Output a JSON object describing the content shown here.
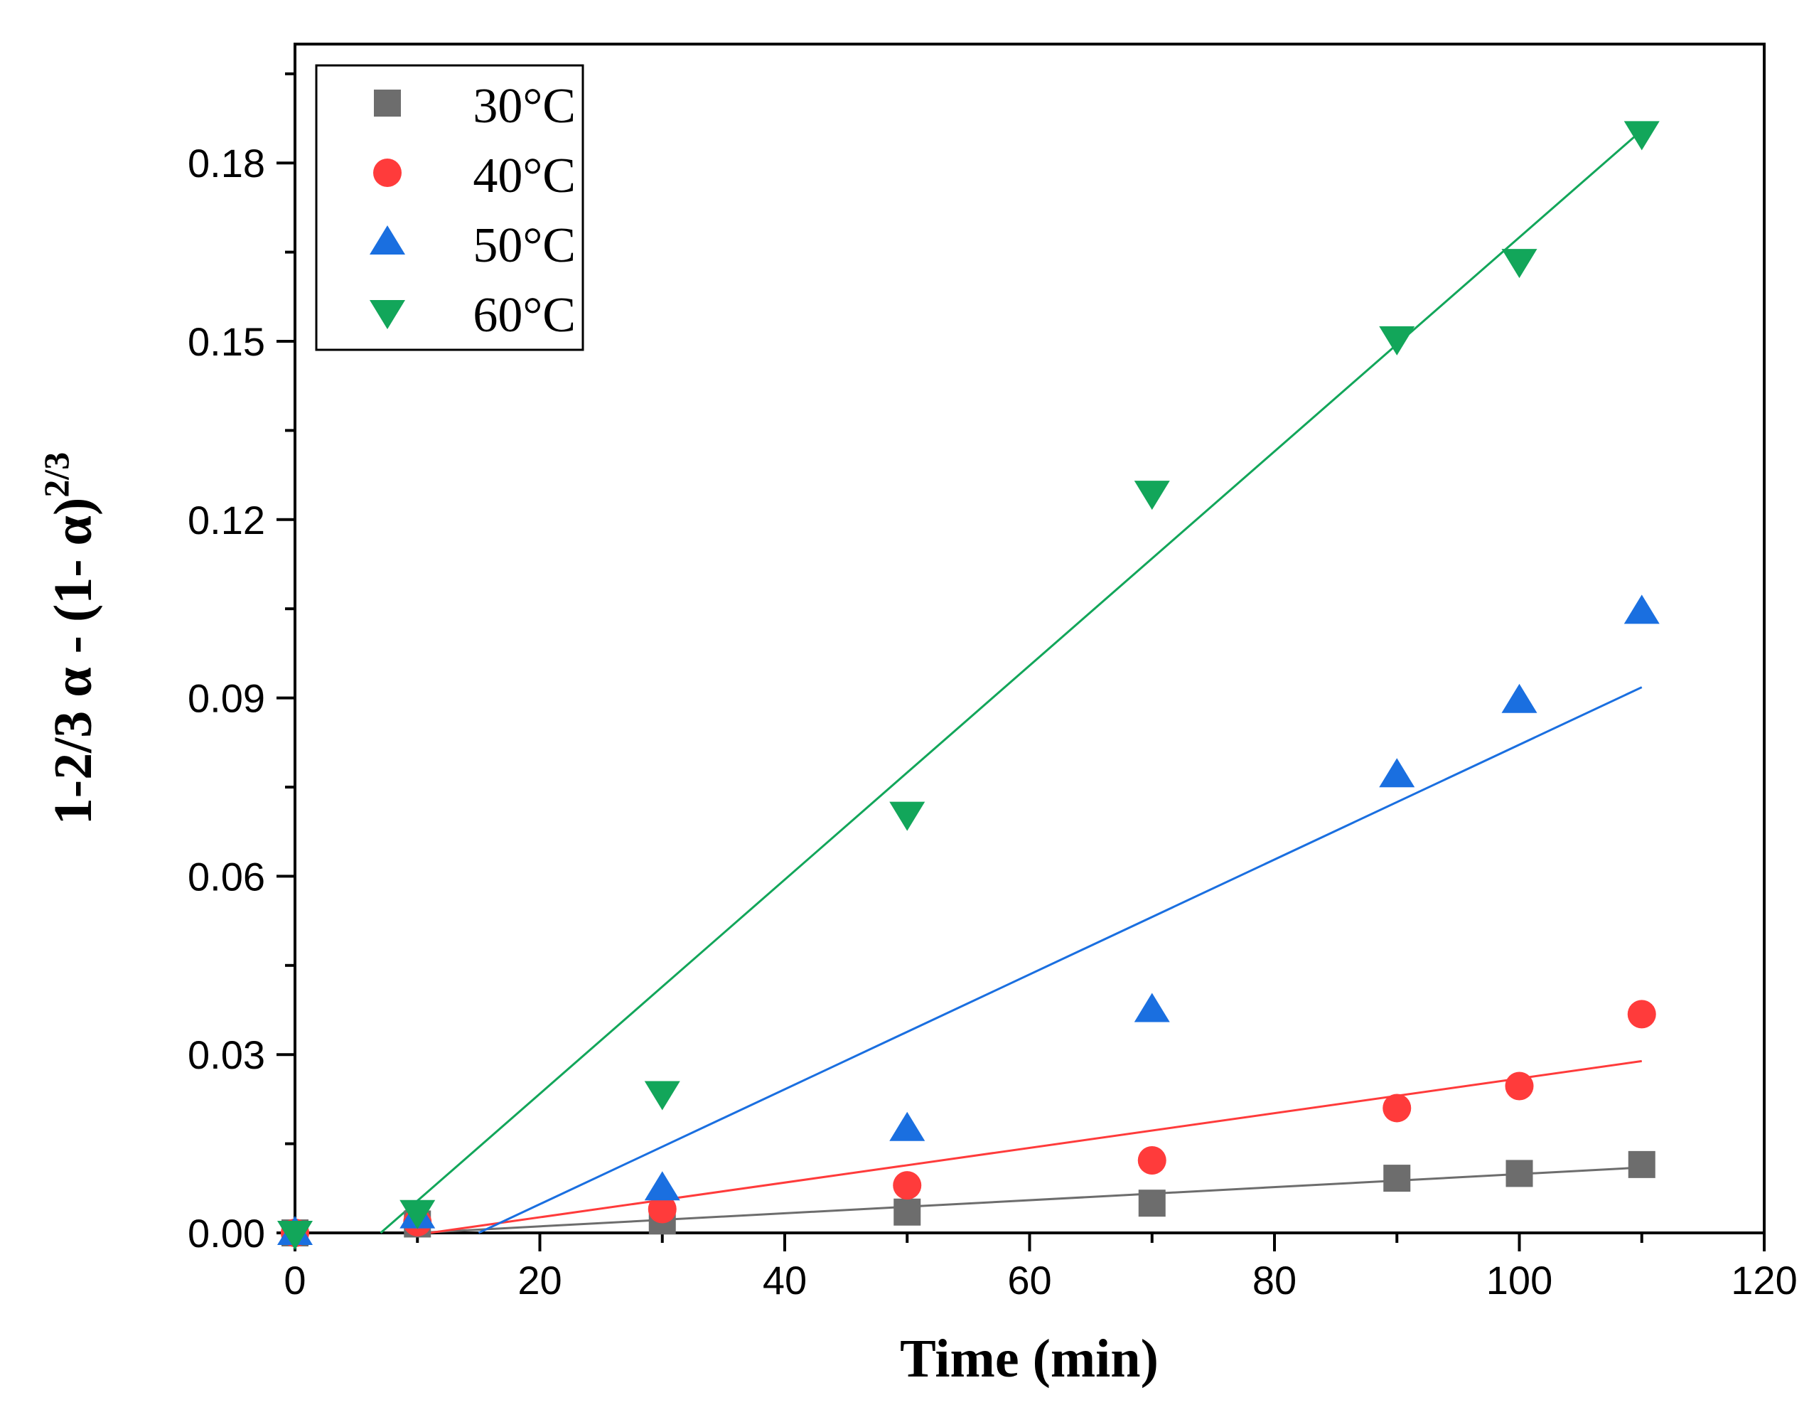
{
  "chart_data": {
    "type": "scatter",
    "title": "",
    "xlabel": "Time (min)",
    "ylabel": {
      "main": "1-2/3 α - (1- α)",
      "superscript": "2/3"
    },
    "xlim": [
      0,
      120
    ],
    "ylim": [
      0,
      0.2
    ],
    "xticks": [
      "0",
      "20",
      "40",
      "60",
      "80",
      "100",
      "120"
    ],
    "xtick_values": [
      0,
      20,
      40,
      60,
      80,
      100,
      120
    ],
    "yticks": [
      "0.00",
      "0.03",
      "0.06",
      "0.09",
      "0.12",
      "0.15",
      "0.18"
    ],
    "ytick_values": [
      0,
      0.03,
      0.06,
      0.09,
      0.12,
      0.15,
      0.18
    ],
    "grid": false,
    "legend_position": "top-left",
    "series": [
      {
        "name": "30°C",
        "color": "#6d6d6d",
        "marker": "square",
        "x": [
          0,
          10,
          30,
          50,
          70,
          90,
          100,
          110
        ],
        "y": [
          0,
          0.0015,
          0.002,
          0.0035,
          0.005,
          0.0092,
          0.01,
          0.0115
        ],
        "fit": {
          "x": [
            10,
            110
          ],
          "y": [
            0,
            0.011
          ]
        }
      },
      {
        "name": "40°C",
        "color": "#ff3b3b",
        "marker": "circle",
        "x": [
          0,
          10,
          30,
          50,
          70,
          90,
          100,
          110
        ],
        "y": [
          0,
          0.0018,
          0.004,
          0.008,
          0.0122,
          0.021,
          0.0247,
          0.0368
        ],
        "fit": {
          "x": [
            11,
            110
          ],
          "y": [
            0,
            0.0289
          ]
        }
      },
      {
        "name": "50°C",
        "color": "#1a6fe0",
        "marker": "triangle-up",
        "x": [
          0,
          10,
          30,
          50,
          70,
          90,
          100,
          110
        ],
        "y": [
          0,
          0.0028,
          0.0075,
          0.0175,
          0.0375,
          0.077,
          0.0895,
          0.1045
        ],
        "fit": {
          "x": [
            15,
            110
          ],
          "y": [
            0,
            0.0918
          ]
        }
      },
      {
        "name": "60°C",
        "color": "#12a65a",
        "marker": "triangle-down",
        "x": [
          0,
          10,
          30,
          50,
          70,
          90,
          100,
          110
        ],
        "y": [
          0,
          0.0035,
          0.0235,
          0.0705,
          0.1245,
          0.1505,
          0.1635,
          0.185
        ],
        "fit": {
          "x": [
            7,
            110
          ],
          "y": [
            0,
            0.1855
          ]
        }
      }
    ]
  }
}
